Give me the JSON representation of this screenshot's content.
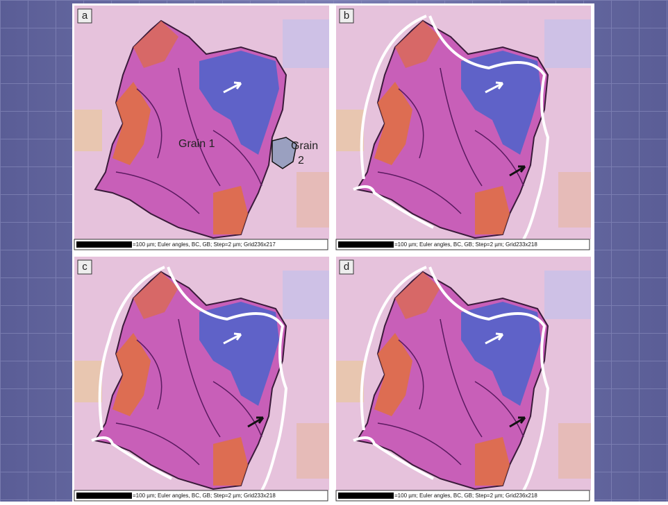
{
  "panels": [
    {
      "label": "a",
      "caption": "=100 µm; Euler angles, BC, GB; Step=2 µm; Grid236x217",
      "grain1": "Grain 1",
      "grain2_line1": "Grain",
      "grain2_line2": "2"
    },
    {
      "label": "b",
      "caption": "=100 µm; Euler angles, BC, GB; Step=2 µm; Grid233x218"
    },
    {
      "label": "c",
      "caption": "=100 µm; Euler angles, BC, GB; Step=2 µm; Grid233x218"
    },
    {
      "label": "d",
      "caption": "=100 µm; Euler angles, BC, GB; Step=2 µm; Grid236x218"
    }
  ]
}
